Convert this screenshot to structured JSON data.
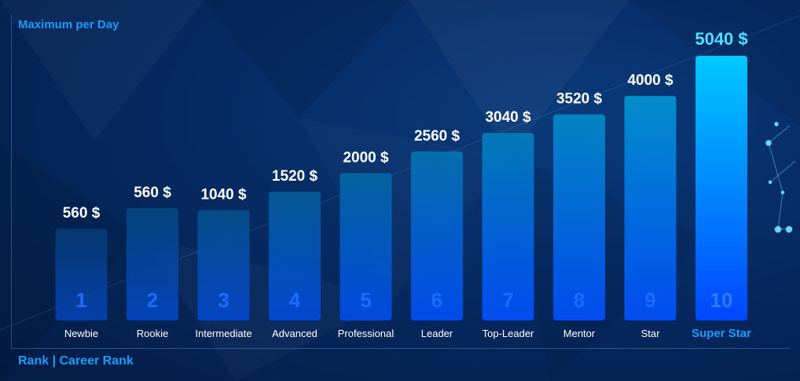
{
  "chart_data": {
    "type": "bar",
    "title": "Maximum per Day",
    "xlabel": "Rank | Career Rank",
    "ylabel": "",
    "categories": [
      "Newbie",
      "Rookie",
      "Intermediate",
      "Advanced",
      "Professional",
      "Leader",
      "Top-Leader",
      "Mentor",
      "Star",
      "Super Star"
    ],
    "ranks": [
      "1",
      "2",
      "3",
      "4",
      "5",
      "6",
      "7",
      "8",
      "9",
      "10"
    ],
    "values": [
      560,
      560,
      1040,
      1520,
      2000,
      2560,
      3040,
      3520,
      4000,
      5040
    ],
    "value_labels": [
      "560 $",
      "560 $",
      "1040 $",
      "1520 $",
      "2000 $",
      "2560 $",
      "3040 $",
      "3520 $",
      "4000 $",
      "5040 $"
    ],
    "highlight_index": 9,
    "colors": {
      "accent": "#1e9bff",
      "highlight_value": "#4fe0ff",
      "bar_top_start": "#063a73",
      "bar_top_end": "#00a2e0",
      "bar_bottom": "#0050ff",
      "rank_number": "#1c6dff",
      "value_text": "#ffffff"
    }
  }
}
